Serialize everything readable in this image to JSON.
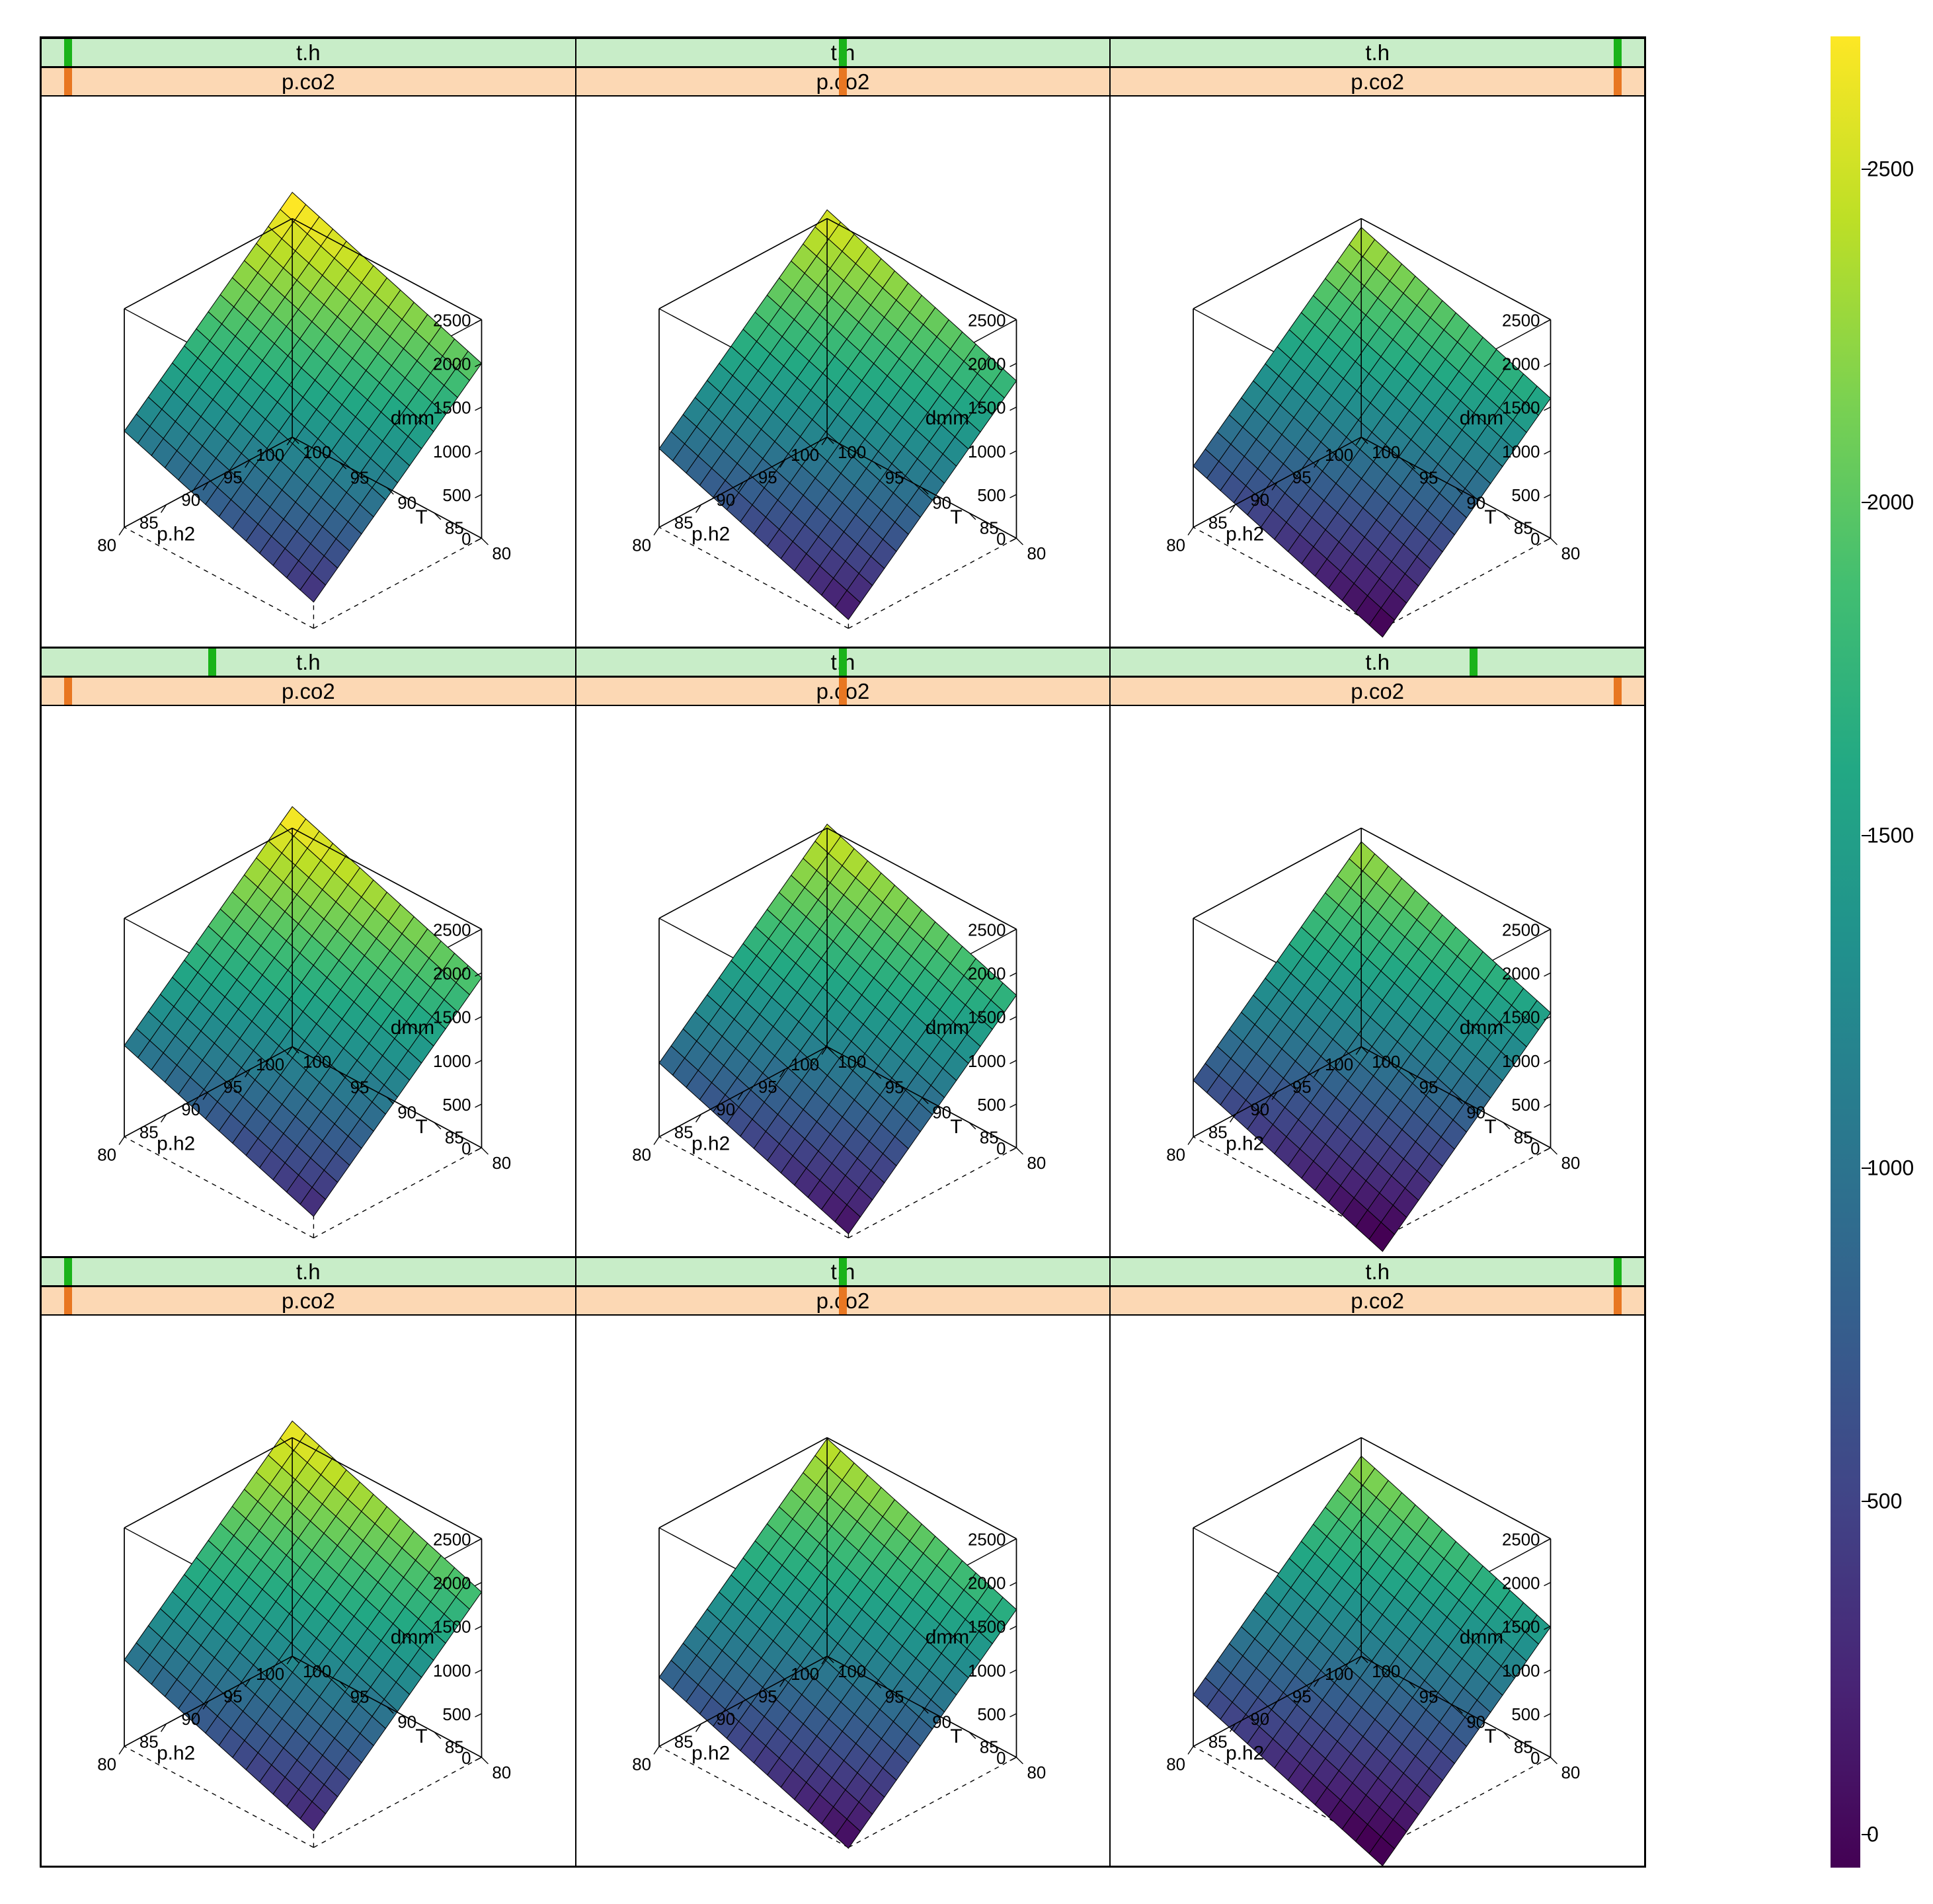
{
  "figure": {
    "type": "trellis-3d-wireframe-grid",
    "rows": 3,
    "cols": 3,
    "background_color": "#ffffff",
    "panel_border_color": "#000000",
    "strip_top": {
      "label": "t.h",
      "bg_color": "#c8edc8",
      "indicator_color": "#1ab31a",
      "indicator_positions_pct": [
        [
          5,
          50,
          95
        ],
        [
          32,
          50,
          68
        ],
        [
          5,
          50,
          95
        ]
      ]
    },
    "strip_bottom": {
      "label": "p.co2",
      "bg_color": "#fcd8b4",
      "indicator_color": "#e87722",
      "indicator_positions_pct": [
        [
          5,
          50,
          95
        ],
        [
          5,
          50,
          95
        ],
        [
          5,
          50,
          95
        ]
      ]
    },
    "axes": {
      "x": {
        "label": "p.h2",
        "min": 80,
        "max": 100,
        "ticks": [
          80,
          85,
          90,
          95,
          100
        ]
      },
      "y": {
        "label": "T",
        "min": 80,
        "max": 100,
        "ticks": [
          80,
          85,
          90,
          95,
          100
        ]
      },
      "z": {
        "label": "dmm",
        "min": 0,
        "max": 2500,
        "ticks": [
          0,
          500,
          1000,
          1500,
          2000,
          2500
        ]
      }
    },
    "view": {
      "azimuth_deg": -60,
      "elevation_deg": 25
    },
    "surface": {
      "grid_n": 14,
      "mesh_line_color": "#000000",
      "mesh_line_width": 1,
      "z_offsets": [
        [
          300,
          100,
          -100
        ],
        [
          245,
          45,
          -155
        ],
        [
          190,
          -10,
          -210
        ]
      ],
      "z_base_formula": "85*(x-80) + 40*(y-80)",
      "comment": "z = offset + 85*(x-80) + 40*(y-80); x=p.h2 in [80,100], y=T in [80,100]"
    },
    "colormap": {
      "name": "viridis",
      "stops": [
        {
          "v": 0.0,
          "c": "#440154"
        },
        {
          "v": 0.1,
          "c": "#482475"
        },
        {
          "v": 0.2,
          "c": "#414487"
        },
        {
          "v": 0.3,
          "c": "#355f8d"
        },
        {
          "v": 0.4,
          "c": "#2a788e"
        },
        {
          "v": 0.5,
          "c": "#21908d"
        },
        {
          "v": 0.6,
          "c": "#22a884"
        },
        {
          "v": 0.7,
          "c": "#42be71"
        },
        {
          "v": 0.8,
          "c": "#7ad151"
        },
        {
          "v": 0.9,
          "c": "#bddf26"
        },
        {
          "v": 1.0,
          "c": "#fde725"
        }
      ],
      "range": [
        -50,
        2700
      ]
    },
    "colorbar": {
      "ticks": [
        0,
        500,
        1000,
        1500,
        2000,
        2500
      ],
      "tick_fontsize": 32
    },
    "fonts": {
      "strip_label_size": 33,
      "axis_label_size": 30,
      "tick_label_size": 28
    }
  }
}
